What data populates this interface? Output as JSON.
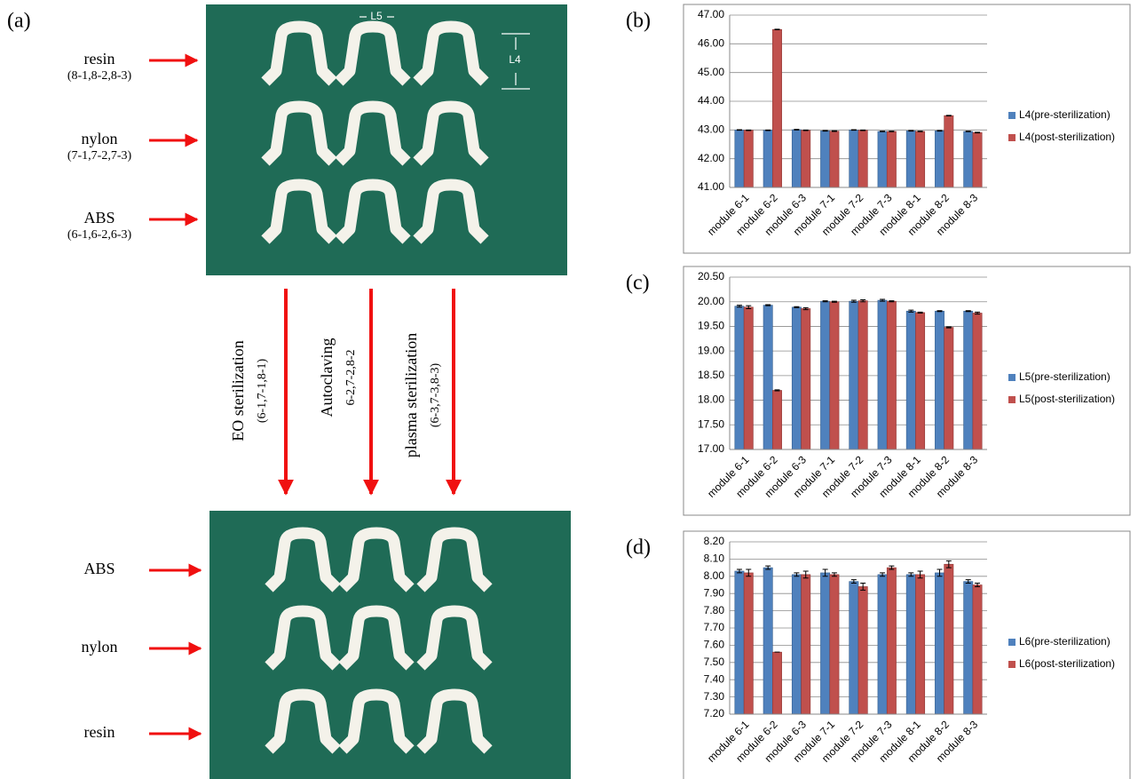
{
  "panel_a": {
    "label": "(a)",
    "top_labels": [
      {
        "name": "resin",
        "ids": "(8-1,8-2,8-3)"
      },
      {
        "name": "nylon",
        "ids": "(7-1,7-2,7-3)"
      },
      {
        "name": "ABS",
        "ids": "(6-1,6-2,6-3)"
      }
    ],
    "processes": [
      {
        "name": "EO sterilization",
        "ids": "(6-1,7-1,8-1)"
      },
      {
        "name": "Autoclaving",
        "ids": "6-2,7-2,8-2"
      },
      {
        "name": "plasma sterilization",
        "ids": "(6-3,7-3,8-3)"
      }
    ],
    "bottom_labels": [
      "ABS",
      "nylon",
      "resin"
    ],
    "dimension_labels": [
      "L5",
      "L4"
    ]
  },
  "chart_data": [
    {
      "type": "bar",
      "panel_label": "(b)",
      "categories": [
        "module 6-1",
        "module 6-2",
        "module 6-3",
        "module 7-1",
        "module 7-2",
        "module 7-3",
        "module 8-1",
        "module 8-2",
        "module 8-3"
      ],
      "series": [
        {
          "name": "L4(pre-sterilization)",
          "color": "#4f81bd",
          "values": [
            43.0,
            42.99,
            43.01,
            42.97,
            43.0,
            42.95,
            42.97,
            42.97,
            42.95
          ],
          "errors": [
            0.01,
            0.01,
            0.01,
            0.01,
            0.01,
            0.01,
            0.01,
            0.01,
            0.01
          ]
        },
        {
          "name": "L4(post-sterilization)",
          "color": "#c0504d",
          "values": [
            42.99,
            46.5,
            42.99,
            42.96,
            42.99,
            42.95,
            42.95,
            43.5,
            42.91
          ],
          "errors": [
            0.01,
            0.01,
            0.01,
            0.01,
            0.01,
            0.01,
            0.01,
            0.01,
            0.01
          ]
        }
      ],
      "ylim": [
        41,
        47
      ],
      "yticks": [
        {
          "value": 41,
          "label": "41.00"
        },
        {
          "value": 42,
          "label": "42.00"
        },
        {
          "value": 43,
          "label": "43.00"
        },
        {
          "value": 44,
          "label": "44.00"
        },
        {
          "value": 45,
          "label": "45.00"
        },
        {
          "value": 46,
          "label": "46.00"
        },
        {
          "value": 47,
          "label": "47.00"
        }
      ],
      "grid": true,
      "legend": "right"
    },
    {
      "type": "bar",
      "panel_label": "(c)",
      "categories": [
        "module 6-1",
        "module 6-2",
        "module 6-3",
        "module 7-1",
        "module 7-2",
        "module 7-3",
        "module 8-1",
        "module 8-2",
        "module 8-3"
      ],
      "series": [
        {
          "name": "L5(pre-sterilization)",
          "color": "#4f81bd",
          "values": [
            19.91,
            19.93,
            19.89,
            20.01,
            20.01,
            20.03,
            19.81,
            19.81,
            19.81
          ],
          "errors": [
            0.02,
            0.01,
            0.01,
            0.01,
            0.02,
            0.02,
            0.02,
            0.01,
            0.01
          ]
        },
        {
          "name": "L5(post-sterilization)",
          "color": "#c0504d",
          "values": [
            19.89,
            18.2,
            19.86,
            20.0,
            20.02,
            20.01,
            19.78,
            19.48,
            19.77
          ],
          "errors": [
            0.03,
            0.01,
            0.02,
            0.01,
            0.02,
            0.01,
            0.01,
            0.01,
            0.02
          ]
        }
      ],
      "ylim": [
        17,
        20.5
      ],
      "yticks": [
        {
          "value": 17,
          "label": "17.00"
        },
        {
          "value": 17.5,
          "label": "17.50"
        },
        {
          "value": 18,
          "label": "18.00"
        },
        {
          "value": 18.5,
          "label": "18.50"
        },
        {
          "value": 19,
          "label": "19.00"
        },
        {
          "value": 19.5,
          "label": "19.50"
        },
        {
          "value": 20,
          "label": "20.00"
        },
        {
          "value": 20.5,
          "label": "20.50"
        }
      ],
      "grid": true,
      "legend": "right"
    },
    {
      "type": "bar",
      "panel_label": "(d)",
      "categories": [
        "module 6-1",
        "module 6-2",
        "module 6-3",
        "module 7-1",
        "module 7-2",
        "module 7-3",
        "module 8-1",
        "module 8-2",
        "module 8-3"
      ],
      "series": [
        {
          "name": "L6(pre-sterilization)",
          "color": "#4f81bd",
          "values": [
            8.03,
            8.05,
            8.01,
            8.02,
            7.97,
            8.01,
            8.01,
            8.02,
            7.97
          ],
          "errors": [
            0.01,
            0.01,
            0.01,
            0.02,
            0.01,
            0.01,
            0.01,
            0.02,
            0.01
          ]
        },
        {
          "name": "L6(post-sterilization)",
          "color": "#c0504d",
          "values": [
            8.02,
            7.56,
            8.01,
            8.01,
            7.94,
            8.05,
            8.01,
            8.07,
            7.95
          ],
          "errors": [
            0.02,
            0.0,
            0.02,
            0.01,
            0.02,
            0.01,
            0.02,
            0.02,
            0.01
          ]
        }
      ],
      "ylim": [
        7.2,
        8.2
      ],
      "yticks": [
        {
          "value": 7.2,
          "label": "7.20"
        },
        {
          "value": 7.3,
          "label": "7.30"
        },
        {
          "value": 7.4,
          "label": "7.40"
        },
        {
          "value": 7.5,
          "label": "7.50"
        },
        {
          "value": 7.6,
          "label": "7.60"
        },
        {
          "value": 7.7,
          "label": "7.70"
        },
        {
          "value": 7.8,
          "label": "7.80"
        },
        {
          "value": 7.9,
          "label": "7.90"
        },
        {
          "value": 8.0,
          "label": "8.00"
        },
        {
          "value": 8.1,
          "label": "8.10"
        },
        {
          "value": 8.2,
          "label": "8.20"
        }
      ],
      "grid": true,
      "legend": "right"
    }
  ]
}
